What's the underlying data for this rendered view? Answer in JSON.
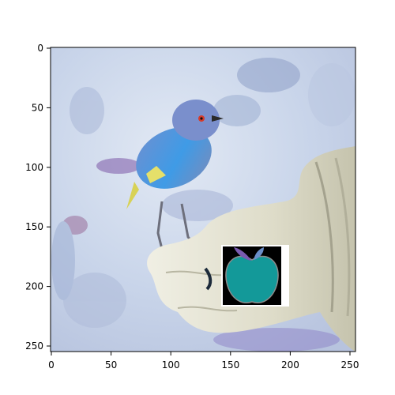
{
  "figure": {
    "x_ticks": [
      "0",
      "50",
      "100",
      "150",
      "200",
      "250"
    ],
    "y_ticks": [
      "0",
      "50",
      "100",
      "150",
      "200",
      "250"
    ]
  },
  "image": {
    "content": "inverted-color photo of a small bird perched on a gloved hand",
    "overlay_icon": "apple-icon",
    "colors": {
      "background": "#c7d3e8",
      "bird_blue": "#4a9de0",
      "glove": "#dcdcc8",
      "apple_fill": "#139999",
      "apple_leaf": "#7a5bb0",
      "overlay_bg": "#000000"
    }
  }
}
